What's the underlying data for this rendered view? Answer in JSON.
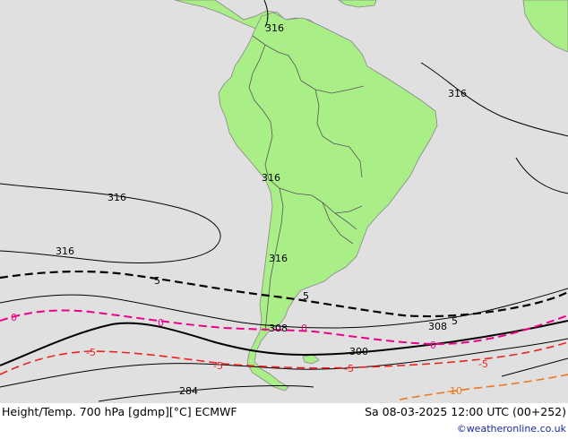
{
  "footer": {
    "title": "Height/Temp. 700 hPa [gdmp][°C] ECMWF",
    "time": "Sa 08-03-2025 12:00 UTC (00+252)",
    "credit": "©weatheronline.co.uk"
  },
  "colors": {
    "ocean": "#e0e0e0",
    "land": "#aaee88",
    "height_contour": "#000000",
    "isotherm_0": "#ee0088",
    "isotherm_minus5": "#ee2222",
    "isotherm_minus10": "#ee7722",
    "isotherm_plus5": "#000000"
  },
  "labels": {
    "h316_a": "316",
    "h316_b": "316",
    "h316_c": "316",
    "h316_d": "316",
    "h316_e": "316",
    "h316_f": "316",
    "h308_a": "308",
    "h308_b": "308",
    "h300": "300",
    "h284": "284",
    "t5_a": "5",
    "t5_b": "5",
    "t5_c": "5",
    "t0_a": "0",
    "t0_b": "0",
    "t0_c": "0",
    "t0_d": "0",
    "tm5_a": "-5",
    "tm5_b": "-5",
    "tm5_c": "-5",
    "tm5_d": "-5",
    "tm10": "-10"
  }
}
